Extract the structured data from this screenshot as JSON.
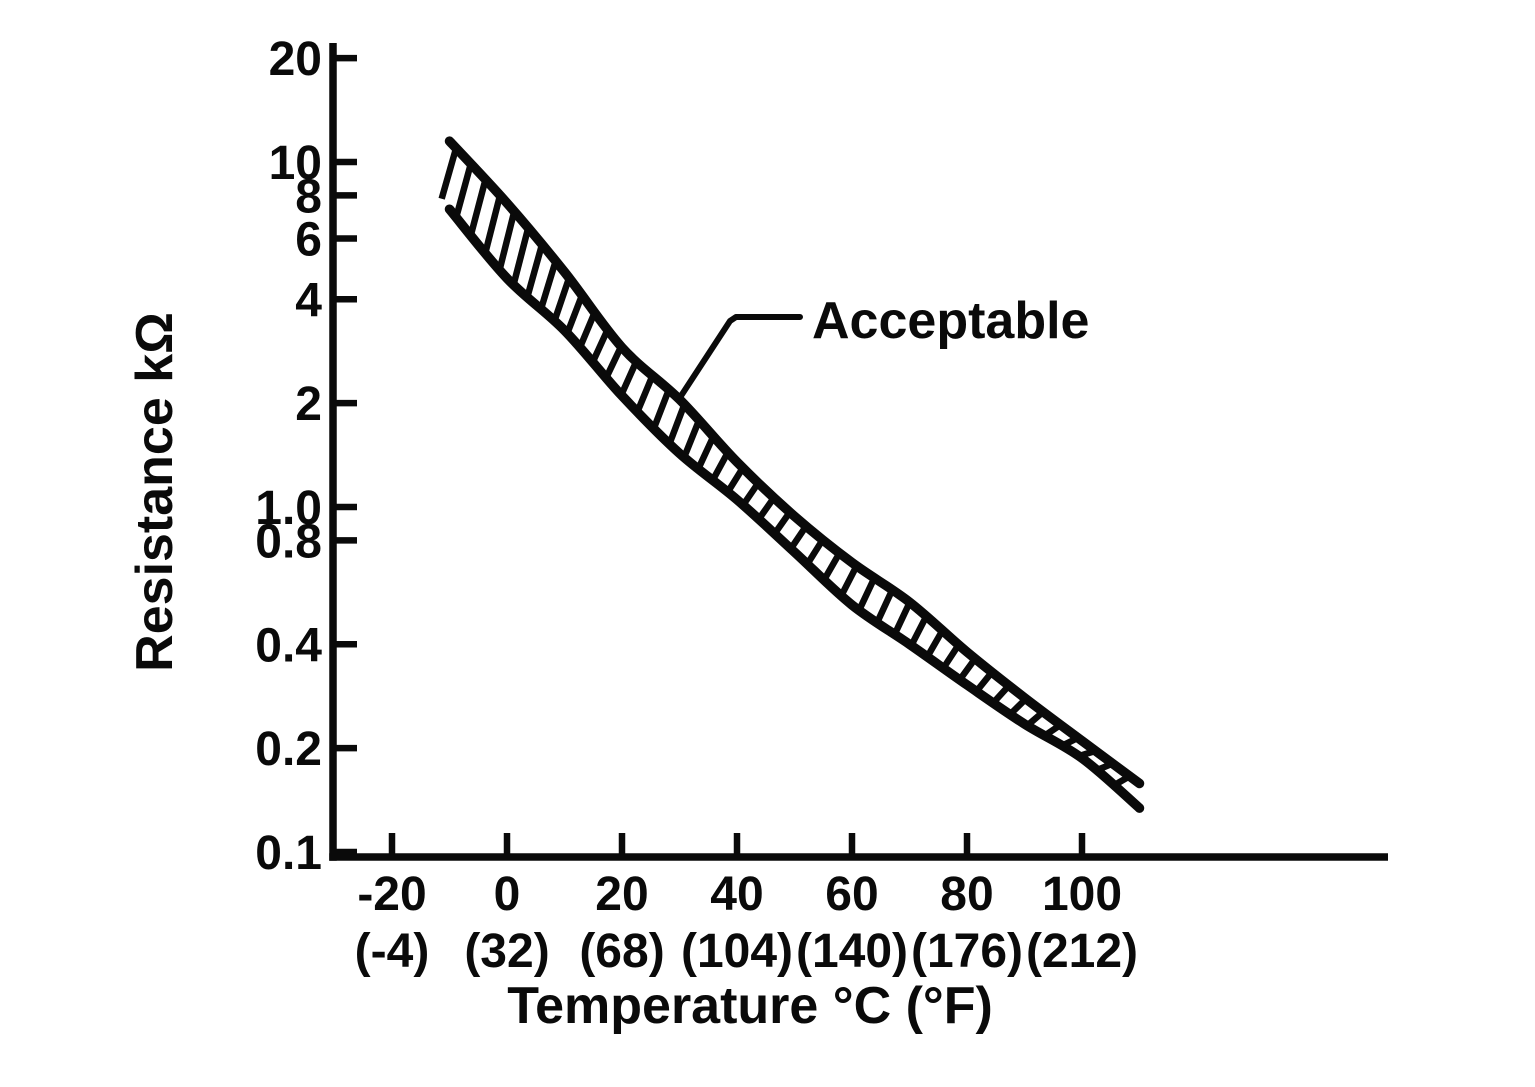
{
  "figure": {
    "background": "#ffffff",
    "ink_color": "#0a0a0a",
    "description": "Scanned black-and-white service-manual chart of thermistor resistance versus temperature with a hatched acceptable band"
  },
  "chart_data": {
    "type": "area",
    "title": "",
    "xlabel": "Temperature °C (°F)",
    "ylabel": "Resistance kΩ",
    "legend": "none",
    "grid": false,
    "x_axis": {
      "unit": "°C (°F)",
      "ticks_c": [
        -20,
        0,
        20,
        40,
        60,
        80,
        100
      ],
      "tick_labels_c": [
        "-20",
        "0",
        "20",
        "40",
        "60",
        "80",
        "100"
      ],
      "tick_labels_f": [
        "(-4)",
        "(32)",
        "(68)",
        "(104)",
        "(140)",
        "(176)",
        "(212)"
      ],
      "xlim": [
        -30,
        153
      ]
    },
    "y_axis": {
      "unit": "kΩ",
      "scale": "log",
      "ticks": [
        20,
        10,
        8,
        6,
        4,
        2,
        1.0,
        0.8,
        0.4,
        0.2,
        0.1
      ],
      "tick_labels": [
        "20",
        "10",
        "8",
        "6",
        "4",
        "2",
        "1.0",
        "0.8",
        "0.4",
        "0.2",
        "0.1"
      ],
      "ylim": [
        0.1,
        22
      ]
    },
    "band_style": "hatched",
    "series": [
      {
        "name": "acceptable-upper-limit",
        "x": [
          -10,
          0,
          10,
          20,
          30,
          40,
          50,
          60,
          70,
          80,
          90,
          100,
          110
        ],
        "values": [
          11.5,
          7.6,
          4.8,
          2.9,
          2.05,
          1.35,
          0.94,
          0.69,
          0.53,
          0.38,
          0.28,
          0.21,
          0.158
        ]
      },
      {
        "name": "acceptable-lower-limit",
        "x": [
          -10,
          0,
          10,
          20,
          30,
          40,
          50,
          60,
          70,
          80,
          90,
          100,
          110
        ],
        "values": [
          7.3,
          4.6,
          3.25,
          2.1,
          1.43,
          1.05,
          0.74,
          0.52,
          0.4,
          0.305,
          0.235,
          0.187,
          0.134
        ]
      }
    ],
    "annotation": {
      "label": "Acceptable",
      "points_to": "hatched band between upper and lower limit curves"
    }
  }
}
